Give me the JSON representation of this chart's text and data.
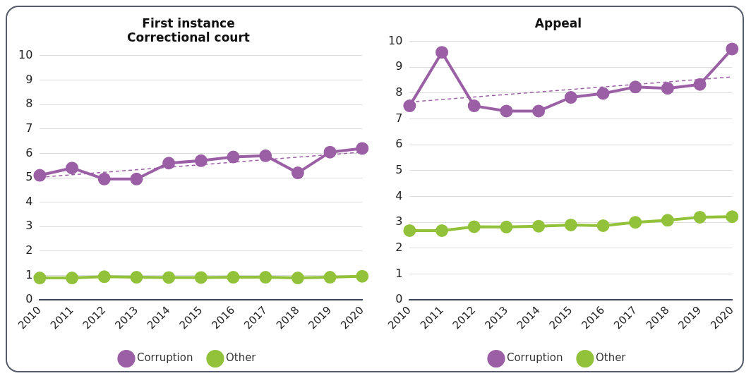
{
  "chart_data": [
    {
      "type": "line",
      "title": "First instance\nCorrectional court",
      "categories": [
        "2010",
        "2011",
        "2012",
        "2013",
        "2014",
        "2015",
        "2016",
        "2017",
        "2018",
        "2019",
        "2020"
      ],
      "series": [
        {
          "name": "Corruption",
          "color": "#9b5fa5",
          "values": [
            5.1,
            5.4,
            4.95,
            4.95,
            5.6,
            5.7,
            5.85,
            5.9,
            5.2,
            6.05,
            6.2
          ]
        },
        {
          "name": "Other",
          "color": "#92c13a",
          "values": [
            0.9,
            0.9,
            0.95,
            0.93,
            0.92,
            0.92,
            0.93,
            0.93,
            0.9,
            0.93,
            0.97
          ]
        },
        {
          "color": "#9b5fa5",
          "line_style": "dashed",
          "marker": "none",
          "values": [
            5.02,
            null,
            null,
            null,
            null,
            null,
            null,
            null,
            null,
            null,
            6.05
          ]
        }
      ],
      "ylim": [
        0,
        10
      ],
      "yticks": [
        0,
        1,
        2,
        3,
        4,
        5,
        6,
        7,
        8,
        9,
        10
      ],
      "grid": "y",
      "legend": "bottom",
      "marker": "circle"
    },
    {
      "type": "line",
      "title": "Appeal",
      "categories": [
        "2010",
        "2011",
        "2012",
        "2013",
        "2014",
        "2015",
        "2016",
        "2017",
        "2018",
        "2019",
        "2020"
      ],
      "series": [
        {
          "name": "Corruption",
          "color": "#9b5fa5",
          "values": [
            7.5,
            9.57,
            7.5,
            7.3,
            7.3,
            7.83,
            7.98,
            8.23,
            8.18,
            8.33,
            9.7
          ]
        },
        {
          "name": "Other",
          "color": "#92c13a",
          "values": [
            2.68,
            2.68,
            2.83,
            2.82,
            2.85,
            2.9,
            2.87,
            3.0,
            3.08,
            3.2,
            3.22
          ]
        },
        {
          "color": "#9b5fa5",
          "line_style": "dashed",
          "marker": "none",
          "values": [
            7.65,
            null,
            null,
            null,
            null,
            null,
            null,
            null,
            null,
            null,
            8.62
          ]
        }
      ],
      "ylim": [
        0,
        10
      ],
      "yticks": [
        0,
        1,
        2,
        3,
        4,
        5,
        6,
        7,
        8,
        9,
        10
      ],
      "grid": "y",
      "legend": "bottom",
      "marker": "circle"
    }
  ]
}
